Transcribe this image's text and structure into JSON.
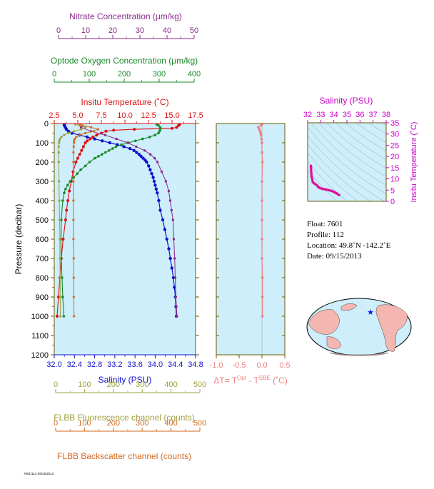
{
  "colors": {
    "nitrate": "#8b2a8b",
    "oxygen": "#1a8a2a",
    "temperature": "#dd1111",
    "salinity": "#1010cc",
    "fluorescence": "#a0a040",
    "backscatter": "#d2691e",
    "delta_t": "#f08080",
    "inset_ts": "#dd1199",
    "plot_bg": "#cdeefa",
    "axis_dark": "#6b5a00",
    "land": "#f4b6b0"
  },
  "labels": {
    "nitrate_title": "Nitrate Concentration (μm/kg)",
    "oxygen_title": "Optode Oxygen Concentration (μm/kg)",
    "temperature_title": "Insitu Temperature (˚C)",
    "pressure_title": "Pressure (decibar)",
    "salinity_title": "Salinity (PSU)",
    "fluor_title": "FLBB Fluorescence channel (counts)",
    "backscatter_title": "FLBB Backscatter channel (counts)",
    "delta_t_title_pre": "ΔT= T",
    "delta_t_sup1": "Opt",
    "delta_t_mid": " - T",
    "delta_t_sup2": "SBE",
    "delta_t_post": " (˚C)",
    "inset_salinity_title": "Salinity (PSU)",
    "inset_temperature_title": "Insitu Temperature (˚C)"
  },
  "info": {
    "float_line": "Float:  7601",
    "profile_line": "Profile:  112",
    "location_line": "Location:  49.8˚N  -142.2˚E",
    "date_line": "Date:  09/15/2013"
  },
  "footer_text": "7601/112 09/15/2013",
  "chart_data": [
    {
      "type": "line",
      "id": "main_profiles",
      "y_axis": {
        "label": "Pressure (decibar)",
        "range": [
          1200,
          0
        ],
        "ticks": [
          0,
          100,
          200,
          300,
          400,
          500,
          600,
          700,
          800,
          900,
          1000,
          1100,
          1200
        ]
      },
      "axes": {
        "salinity": {
          "label": "Salinity (PSU)",
          "range": [
            32.0,
            34.8
          ],
          "tick_labels": [
            "32.0",
            "32.4",
            "32.8",
            "33.2",
            "33.6",
            "34.0",
            "34.4",
            "34.8"
          ]
        },
        "temperature": {
          "label": "Insitu Temperature (˚C)",
          "range": [
            2.5,
            17.5
          ],
          "tick_labels": [
            "2.5",
            "5.0",
            "7.5",
            "10.0",
            "12.5",
            "15.0",
            "17.5"
          ]
        },
        "oxygen": {
          "label": "Optode Oxygen Concentration (μm/kg)",
          "range": [
            0,
            400
          ],
          "tick_labels": [
            "0",
            "100",
            "200",
            "300",
            "400"
          ]
        },
        "nitrate": {
          "label": "Nitrate Concentration (μm/kg)",
          "range": [
            0,
            50
          ],
          "tick_labels": [
            "0",
            "10",
            "20",
            "30",
            "40",
            "50"
          ]
        },
        "fluorescence": {
          "label": "FLBB Fluorescence channel (counts)",
          "range": [
            0,
            500
          ],
          "tick_labels": [
            "0",
            "100",
            "200",
            "300",
            "400",
            "500"
          ]
        },
        "backscatter": {
          "label": "FLBB Backscatter channel (counts)",
          "range": [
            0,
            500
          ],
          "tick_labels": [
            "0",
            "100",
            "200",
            "300",
            "400",
            "500"
          ]
        }
      },
      "series": [
        {
          "key": "salinity",
          "axis": "salinity",
          "color_key": "salinity",
          "p": [
            5,
            10,
            20,
            30,
            40,
            50,
            60,
            70,
            80,
            90,
            100,
            110,
            120,
            130,
            140,
            150,
            160,
            170,
            180,
            190,
            200,
            220,
            240,
            260,
            280,
            300,
            320,
            340,
            360,
            400,
            450,
            500,
            550,
            600,
            650,
            700,
            750,
            800,
            850,
            900,
            950,
            1000
          ],
          "v": [
            32.2,
            32.2,
            32.22,
            32.24,
            32.28,
            32.35,
            32.5,
            32.65,
            32.8,
            32.95,
            33.1,
            33.25,
            33.38,
            33.5,
            33.58,
            33.63,
            33.68,
            33.72,
            33.76,
            33.8,
            33.83,
            33.87,
            33.9,
            33.93,
            33.96,
            33.98,
            34.0,
            34.02,
            34.04,
            34.07,
            34.1,
            34.15,
            34.19,
            34.23,
            34.27,
            34.3,
            34.33,
            34.36,
            34.38,
            34.4,
            34.41,
            34.42
          ]
        },
        {
          "key": "temperature",
          "axis": "temperature",
          "color_key": "temperature",
          "p": [
            5,
            10,
            20,
            25,
            30,
            35,
            40,
            50,
            60,
            70,
            80,
            90,
            100,
            120,
            140,
            160,
            180,
            200,
            250,
            300,
            350,
            400,
            450,
            500,
            600,
            700,
            800,
            900,
            1000
          ],
          "v": [
            15.8,
            15.7,
            15.5,
            15.0,
            11.0,
            8.8,
            8.0,
            7.5,
            7.0,
            6.6,
            6.3,
            6.0,
            5.8,
            5.6,
            5.4,
            5.2,
            5.0,
            4.8,
            4.5,
            4.3,
            4.1,
            3.95,
            3.8,
            3.7,
            3.45,
            3.25,
            3.1,
            2.95,
            2.8
          ]
        },
        {
          "key": "oxygen",
          "axis": "oxygen",
          "color_key": "oxygen",
          "p": [
            5,
            10,
            20,
            30,
            40,
            50,
            60,
            70,
            80,
            90,
            100,
            110,
            120,
            130,
            140,
            150,
            160,
            170,
            180,
            200,
            220,
            240,
            260,
            280,
            300,
            320,
            340,
            360,
            400,
            500,
            600,
            700,
            800,
            900,
            1000
          ],
          "v": [
            290,
            295,
            300,
            300,
            298,
            295,
            285,
            270,
            250,
            230,
            210,
            190,
            175,
            165,
            155,
            145,
            135,
            125,
            115,
            100,
            88,
            75,
            65,
            55,
            45,
            38,
            32,
            28,
            24,
            20,
            19,
            20,
            22,
            24,
            27
          ]
        },
        {
          "key": "nitrate",
          "axis": "nitrate",
          "color_key": "nitrate",
          "p": [
            5,
            20,
            40,
            60,
            80,
            100,
            120,
            140,
            160,
            180,
            200,
            250,
            300,
            350,
            400,
            450,
            500,
            600,
            700,
            800,
            900,
            950,
            1000
          ],
          "v": [
            9,
            9.5,
            13,
            18,
            22,
            26,
            29,
            32,
            34,
            35.5,
            36.5,
            38,
            39.5,
            40.5,
            41,
            41.5,
            42,
            42.3,
            42.6,
            42.8,
            43,
            43.2,
            43.4
          ]
        },
        {
          "key": "fluorescence",
          "axis": "fluorescence",
          "color_key": "fluorescence",
          "p": [
            5,
            10,
            20,
            30,
            40,
            50,
            60,
            70,
            80,
            90,
            100,
            120,
            150,
            200,
            300,
            400,
            500,
            600,
            700,
            800,
            900,
            1000
          ],
          "v": [
            75,
            90,
            110,
            95,
            70,
            50,
            35,
            25,
            20,
            18,
            17,
            16,
            16,
            16,
            17,
            18,
            19,
            20,
            20,
            21,
            21,
            22
          ]
        },
        {
          "key": "backscatter",
          "axis": "backscatter",
          "color_key": "backscatter",
          "p": [
            5,
            10,
            20,
            30,
            40,
            50,
            60,
            70,
            80,
            90,
            100,
            120,
            150,
            200,
            300,
            400,
            500,
            600,
            700,
            800,
            900,
            1000
          ],
          "v": [
            90,
            100,
            130,
            155,
            140,
            110,
            90,
            78,
            72,
            70,
            70,
            69,
            68,
            68,
            68,
            68,
            68,
            68,
            69,
            69,
            69,
            70
          ]
        }
      ]
    },
    {
      "type": "line",
      "id": "delta_t",
      "x_axis": {
        "label": "ΔT= T Opt - T SBE (˚C)",
        "range": [
          -1.0,
          0.5
        ],
        "tick_labels": [
          "-1.0",
          "-0.5",
          "0.0",
          "0.5"
        ]
      },
      "y_range": [
        1200,
        0
      ],
      "series": [
        {
          "key": "delta_t",
          "color_key": "delta_t",
          "p": [
            5,
            10,
            20,
            30,
            40,
            50,
            60,
            80,
            100,
            150,
            200,
            300,
            400,
            500,
            600,
            700,
            800,
            900,
            1000
          ],
          "v": [
            0.0,
            -0.02,
            -0.08,
            -0.06,
            -0.04,
            -0.03,
            -0.02,
            -0.01,
            0.0,
            0.0,
            0.01,
            0.0,
            0.0,
            0.0,
            0.0,
            0.0,
            0.01,
            0.01,
            0.01
          ]
        }
      ]
    },
    {
      "type": "line",
      "id": "ts_inset",
      "x_axis": {
        "label": "Salinity (PSU)",
        "range": [
          32,
          38
        ],
        "tick_labels": [
          "32",
          "33",
          "34",
          "35",
          "36",
          "37",
          "38"
        ]
      },
      "y_axis": {
        "label": "Insitu Temperature (˚C)",
        "range": [
          0,
          35
        ],
        "tick_labels": [
          "0",
          "5",
          "10",
          "15",
          "20",
          "25",
          "30",
          "35"
        ]
      },
      "series": [
        {
          "key": "ts",
          "color_key": "inset_ts",
          "s": [
            32.25,
            32.25,
            32.3,
            32.4,
            32.55,
            32.7,
            32.8,
            32.9,
            33.1,
            33.35,
            33.6,
            33.85,
            34.0,
            34.2,
            34.4
          ],
          "t": [
            15.8,
            15.0,
            11.0,
            8.5,
            7.8,
            7.2,
            6.5,
            6.0,
            5.6,
            5.3,
            5.0,
            4.6,
            4.2,
            3.6,
            2.8
          ]
        }
      ]
    }
  ]
}
